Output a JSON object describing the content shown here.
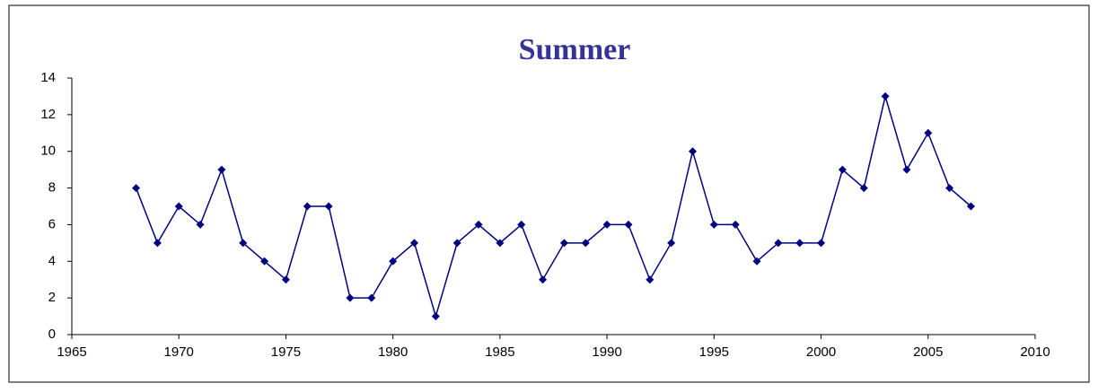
{
  "chart_data": {
    "type": "line",
    "title": "Summer",
    "x": [
      1968,
      1969,
      1970,
      1971,
      1972,
      1973,
      1974,
      1975,
      1976,
      1977,
      1978,
      1979,
      1980,
      1981,
      1982,
      1983,
      1984,
      1985,
      1986,
      1987,
      1988,
      1989,
      1990,
      1991,
      1992,
      1993,
      1994,
      1995,
      1996,
      1997,
      1998,
      1999,
      2000,
      2001,
      2002,
      2003,
      2004,
      2005,
      2006,
      2007
    ],
    "series": [
      {
        "color": "#000080",
        "values": [
          8,
          5,
          7,
          6,
          9,
          5,
          4,
          3,
          7,
          7,
          2,
          2,
          4,
          5,
          1,
          5,
          6,
          5,
          6,
          3,
          5,
          5,
          6,
          6,
          3,
          5,
          10,
          6,
          6,
          4,
          5,
          5,
          5,
          9,
          8,
          13,
          9,
          11,
          8,
          7
        ]
      }
    ],
    "xlim": [
      1965,
      2010
    ],
    "xticks": [
      1965,
      1970,
      1975,
      1980,
      1985,
      1990,
      1995,
      2000,
      2005,
      2010
    ],
    "ylim": [
      0,
      14
    ],
    "yticks": [
      0,
      2,
      4,
      6,
      8,
      10,
      12,
      14
    ],
    "grid": false
  }
}
